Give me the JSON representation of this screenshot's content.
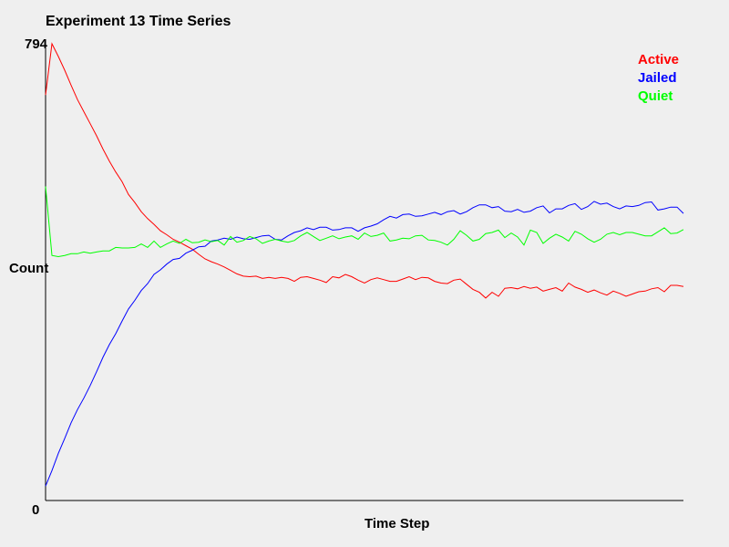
{
  "chart_data": {
    "type": "line",
    "title": "Experiment 13 Time Series",
    "xlabel": "Time Step",
    "ylabel": "Count",
    "ylim": [
      0,
      794
    ],
    "ytick_labels": [
      "794",
      "0"
    ],
    "grid": false,
    "legend_position": "top-right",
    "x": [
      0,
      1,
      2,
      3,
      4,
      5,
      6,
      7,
      8,
      9,
      10,
      11,
      12,
      13,
      14,
      15,
      16,
      17,
      18,
      19,
      20,
      21,
      22,
      23,
      24,
      25,
      26,
      27,
      28,
      29,
      30,
      31,
      32,
      33,
      34,
      35,
      36,
      37,
      38,
      39,
      40,
      41,
      42,
      43,
      44,
      45,
      46,
      47,
      48,
      49,
      50,
      51,
      52,
      53,
      54,
      55,
      56,
      57,
      58,
      59,
      60,
      61,
      62,
      63,
      64,
      65,
      66,
      67,
      68,
      69,
      70,
      71,
      72,
      73,
      74,
      75,
      76,
      77,
      78,
      79,
      80,
      81,
      82,
      83,
      84,
      85,
      86,
      87,
      88,
      89,
      90,
      91,
      92,
      93,
      94,
      95,
      96,
      97,
      98,
      99,
      100
    ],
    "series": [
      {
        "name": "Active",
        "color": "#ff0000",
        "values": [
          705,
          794,
          772,
          748,
          722,
          697,
          676,
          655,
          634,
          611,
          590,
          571,
          554,
          532,
          518,
          502,
          490,
          480,
          469,
          462,
          454,
          449,
          443,
          437,
          428,
          420,
          415,
          411,
          406,
          400,
          394,
          390,
          389,
          390,
          386,
          388,
          386,
          388,
          386,
          381,
          388,
          389,
          386,
          383,
          379,
          389,
          387,
          393,
          389,
          383,
          378,
          384,
          387,
          384,
          381,
          381,
          385,
          389,
          384,
          388,
          387,
          381,
          378,
          377,
          383,
          385,
          376,
          367,
          362,
          352,
          362,
          355,
          369,
          370,
          368,
          372,
          369,
          371,
          364,
          367,
          370,
          364,
          378,
          371,
          367,
          362,
          366,
          361,
          357,
          364,
          360,
          355,
          359,
          363,
          364,
          368,
          370,
          363,
          374,
          374,
          372
        ]
      },
      {
        "name": "Jailed",
        "color": "#0000ff",
        "values": [
          25,
          52,
          82,
          108,
          135,
          158,
          178,
          200,
          224,
          249,
          271,
          290,
          312,
          333,
          348,
          365,
          377,
          393,
          401,
          411,
          419,
          421,
          430,
          435,
          441,
          442,
          451,
          453,
          456,
          454,
          458,
          455,
          454,
          457,
          460,
          461,
          454,
          453,
          460,
          466,
          469,
          474,
          471,
          475,
          475,
          470,
          471,
          474,
          474,
          468,
          474,
          477,
          481,
          488,
          494,
          491,
          497,
          498,
          494,
          495,
          498,
          501,
          497,
          502,
          504,
          498,
          502,
          509,
          514,
          514,
          509,
          511,
          503,
          502,
          506,
          501,
          503,
          509,
          512,
          500,
          507,
          507,
          513,
          516,
          506,
          511,
          520,
          515,
          517,
          511,
          507,
          512,
          511,
          513,
          518,
          519,
          505,
          507,
          510,
          510,
          499
        ]
      },
      {
        "name": "Quiet",
        "color": "#00ff00",
        "values": [
          546,
          426,
          424,
          426,
          429,
          429,
          432,
          430,
          432,
          434,
          434,
          440,
          439,
          439,
          440,
          446,
          440,
          451,
          440,
          446,
          451,
          447,
          454,
          448,
          449,
          453,
          450,
          452,
          444,
          459,
          449,
          452,
          459,
          455,
          447,
          451,
          454,
          451,
          449,
          452,
          460,
          466,
          459,
          452,
          456,
          460,
          455,
          458,
          460,
          454,
          465,
          459,
          461,
          465,
          451,
          453,
          456,
          455,
          460,
          461,
          453,
          452,
          449,
          444,
          454,
          469,
          461,
          451,
          454,
          464,
          466,
          470,
          457,
          465,
          458,
          444,
          470,
          466,
          447,
          456,
          463,
          458,
          451,
          468,
          463,
          455,
          449,
          454,
          463,
          466,
          462,
          466,
          466,
          463,
          460,
          460,
          467,
          474,
          464,
          465,
          471
        ]
      }
    ]
  }
}
